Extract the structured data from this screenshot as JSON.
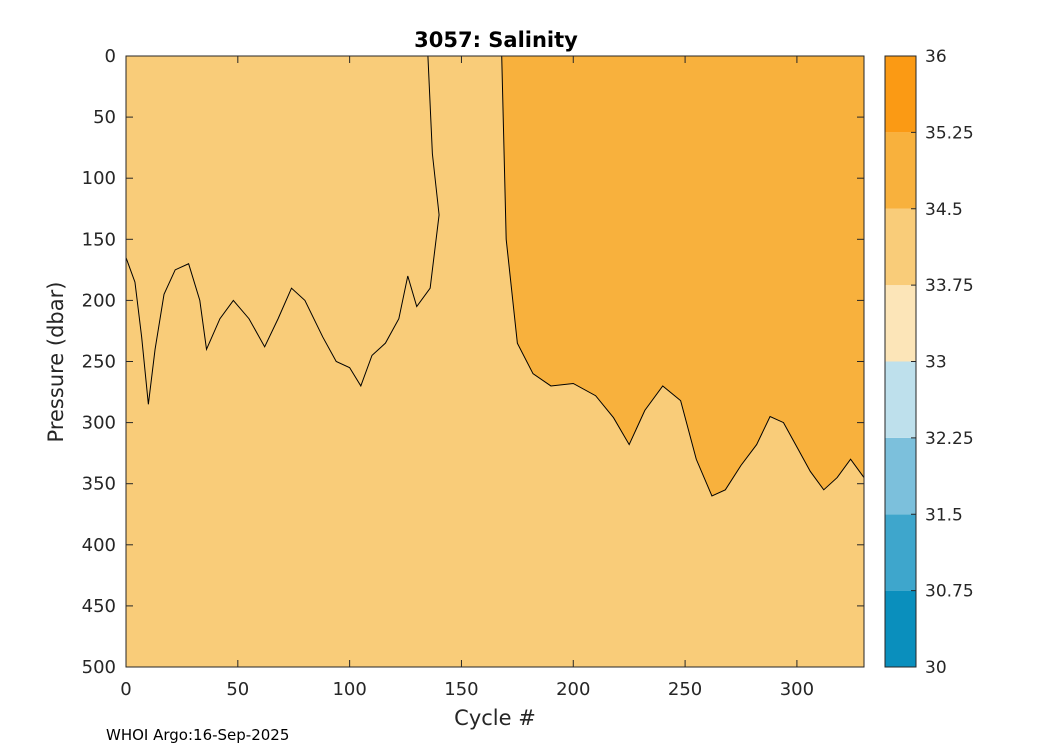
{
  "chart_data": {
    "type": "heatmap",
    "subtype": "filled-contour",
    "title": "3057:  Salinity",
    "xlabel": "Cycle #",
    "ylabel": "Pressure (dbar)",
    "xlim": [
      0,
      330
    ],
    "ylim": [
      0,
      500
    ],
    "y_reversed": true,
    "xticks": [
      0,
      50,
      100,
      150,
      200,
      250,
      300
    ],
    "yticks": [
      0,
      50,
      100,
      150,
      200,
      250,
      300,
      350,
      400,
      450,
      500
    ],
    "colorbar": {
      "ticks": [
        30,
        30.75,
        31.5,
        32.25,
        33,
        33.75,
        34.5,
        35.25,
        36
      ],
      "tick_labels": [
        "30",
        "30.75",
        "31.5",
        "32.25",
        "33",
        "33.75",
        "34.5",
        "35.25",
        "36"
      ],
      "colors": [
        "#0a8fbd",
        "#3ea6cc",
        "#7cc0dc",
        "#bee0ec",
        "#fce5b8",
        "#f9cc79",
        "#f8b13d",
        "#fb9a14"
      ]
    },
    "background_class_salinity": "33.75-34.5",
    "high_salinity_region": {
      "label": "34.5-35.25",
      "boundary": [
        {
          "cycle": 168,
          "pressure": 0
        },
        {
          "cycle": 170,
          "pressure": 150
        },
        {
          "cycle": 175,
          "pressure": 235
        },
        {
          "cycle": 182,
          "pressure": 260
        },
        {
          "cycle": 190,
          "pressure": 270
        },
        {
          "cycle": 200,
          "pressure": 268
        },
        {
          "cycle": 210,
          "pressure": 278
        },
        {
          "cycle": 218,
          "pressure": 296
        },
        {
          "cycle": 225,
          "pressure": 318
        },
        {
          "cycle": 232,
          "pressure": 290
        },
        {
          "cycle": 240,
          "pressure": 270
        },
        {
          "cycle": 248,
          "pressure": 282
        },
        {
          "cycle": 255,
          "pressure": 330
        },
        {
          "cycle": 262,
          "pressure": 360
        },
        {
          "cycle": 268,
          "pressure": 355
        },
        {
          "cycle": 275,
          "pressure": 335
        },
        {
          "cycle": 282,
          "pressure": 318
        },
        {
          "cycle": 288,
          "pressure": 295
        },
        {
          "cycle": 294,
          "pressure": 300
        },
        {
          "cycle": 300,
          "pressure": 320
        },
        {
          "cycle": 306,
          "pressure": 340
        },
        {
          "cycle": 312,
          "pressure": 355
        },
        {
          "cycle": 318,
          "pressure": 345
        },
        {
          "cycle": 324,
          "pressure": 330
        },
        {
          "cycle": 330,
          "pressure": 345
        }
      ]
    },
    "contour_line_shallow": [
      {
        "cycle": 0,
        "pressure": 165
      },
      {
        "cycle": 4,
        "pressure": 185
      },
      {
        "cycle": 7,
        "pressure": 230
      },
      {
        "cycle": 10,
        "pressure": 285
      },
      {
        "cycle": 13,
        "pressure": 240
      },
      {
        "cycle": 17,
        "pressure": 195
      },
      {
        "cycle": 22,
        "pressure": 175
      },
      {
        "cycle": 28,
        "pressure": 170
      },
      {
        "cycle": 33,
        "pressure": 200
      },
      {
        "cycle": 36,
        "pressure": 240
      },
      {
        "cycle": 42,
        "pressure": 215
      },
      {
        "cycle": 48,
        "pressure": 200
      },
      {
        "cycle": 55,
        "pressure": 215
      },
      {
        "cycle": 62,
        "pressure": 238
      },
      {
        "cycle": 68,
        "pressure": 215
      },
      {
        "cycle": 74,
        "pressure": 190
      },
      {
        "cycle": 80,
        "pressure": 200
      },
      {
        "cycle": 88,
        "pressure": 230
      },
      {
        "cycle": 94,
        "pressure": 250
      },
      {
        "cycle": 100,
        "pressure": 255
      },
      {
        "cycle": 105,
        "pressure": 270
      },
      {
        "cycle": 110,
        "pressure": 245
      },
      {
        "cycle": 116,
        "pressure": 235
      },
      {
        "cycle": 122,
        "pressure": 215
      },
      {
        "cycle": 126,
        "pressure": 180
      },
      {
        "cycle": 130,
        "pressure": 205
      },
      {
        "cycle": 136,
        "pressure": 190
      },
      {
        "cycle": 140,
        "pressure": 130
      },
      {
        "cycle": 137,
        "pressure": 80
      },
      {
        "cycle": 135,
        "pressure": 0
      }
    ],
    "footer": "WHOI Argo:16-Sep-2025"
  }
}
